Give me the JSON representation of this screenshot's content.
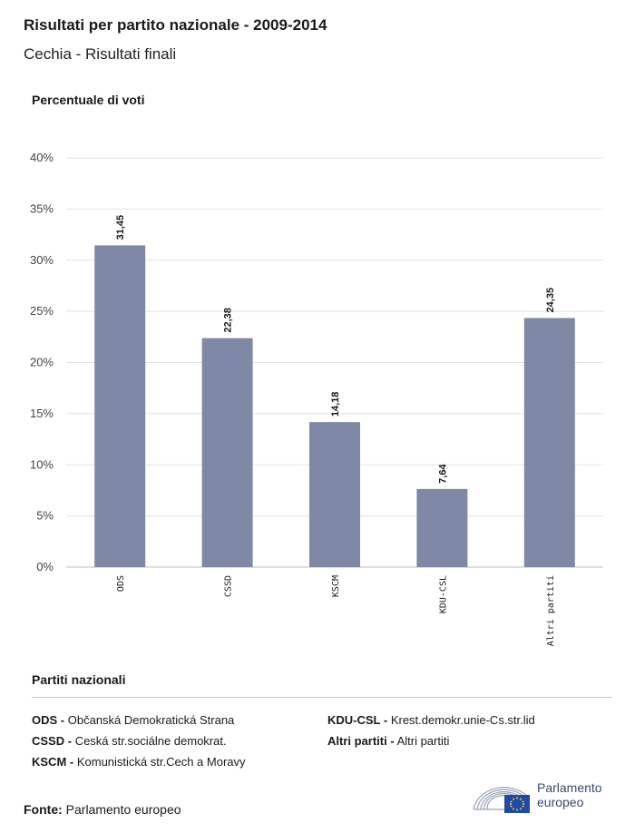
{
  "header": {
    "title": "Risultati per partito nazionale - 2009-2014",
    "subtitle": "Cechia - Risultati finali"
  },
  "chart_data": {
    "type": "bar",
    "ylabel": "Percentuale di voti",
    "categories": [
      "ODS",
      "CSSD",
      "KSCM",
      "KDU-CSL",
      "Altri partiti"
    ],
    "values": [
      31.45,
      22.38,
      14.18,
      7.64,
      24.35
    ],
    "value_labels": [
      "31,45",
      "22,38",
      "14,18",
      "7,64",
      "24,35"
    ],
    "ylim": [
      0,
      40
    ],
    "yticks": [
      0,
      5,
      10,
      15,
      20,
      25,
      30,
      35,
      40
    ],
    "ytick_labels": [
      "0%",
      "5%",
      "10%",
      "15%",
      "20%",
      "25%",
      "30%",
      "35%",
      "40%"
    ],
    "grid": true,
    "bar_color": "#7f89a6"
  },
  "legend": {
    "heading": "Partiti nazionali",
    "items": [
      {
        "code": "ODS -",
        "name": "Občanská Demokratická Strana"
      },
      {
        "code": "CSSD -",
        "name": "Ceská str.sociálne demokrat."
      },
      {
        "code": "KSCM -",
        "name": "Komunistická str.Cech a Moravy"
      },
      {
        "code": "KDU-CSL -",
        "name": "Krest.demokr.unie-Cs.str.lid"
      },
      {
        "code": "Altri partiti -",
        "name": "Altri partiti"
      }
    ]
  },
  "footer": {
    "source_label": "Fonte:",
    "source_value": "Parlamento europeo",
    "logo_line1": "Parlamento",
    "logo_line2": "europeo"
  }
}
